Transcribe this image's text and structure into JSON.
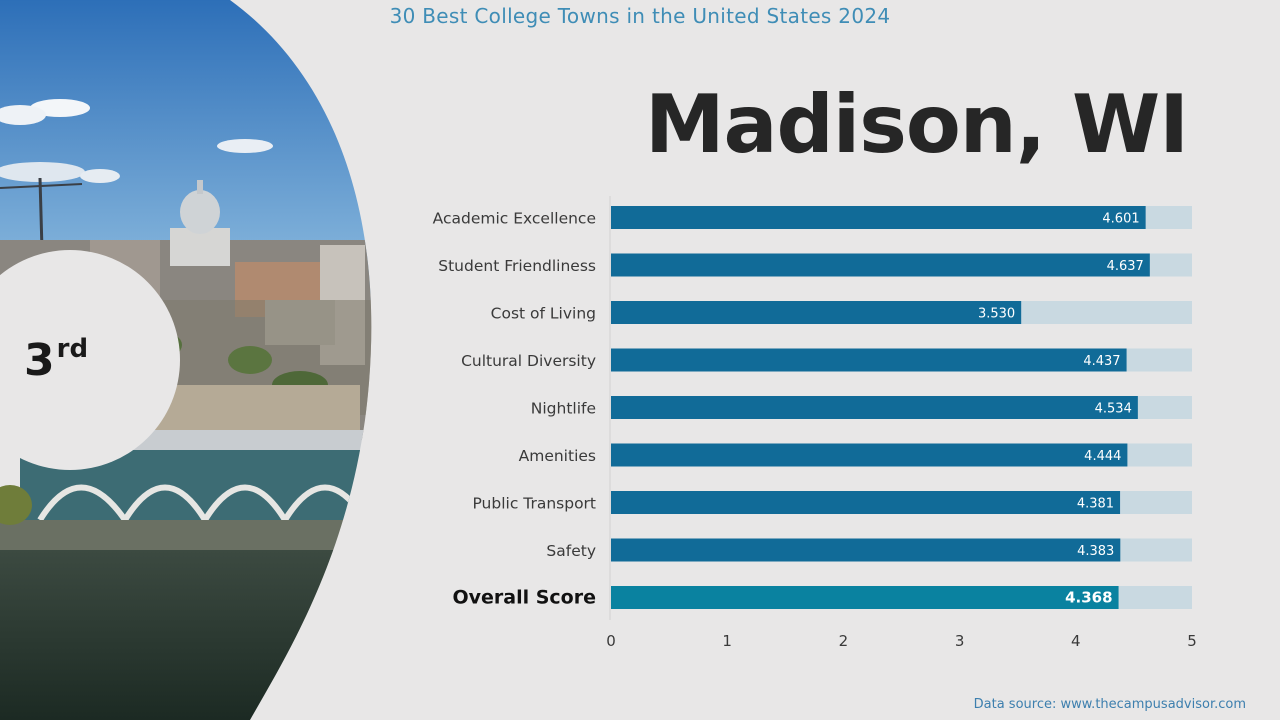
{
  "header": {
    "title": "30 Best College Towns in the United States 2024"
  },
  "city": {
    "name": "Madison, WI",
    "rank_number": "3",
    "rank_suffix": "rd"
  },
  "source": "Data source: www.thecampusadvisor.com",
  "colors": {
    "bar": "#116b98",
    "overall_bar": "#0a82a0",
    "track": "#c9d9e1",
    "title": "#3f8db6",
    "background": "#e8e7e7"
  },
  "chart_data": {
    "type": "bar",
    "orientation": "horizontal",
    "categories": [
      "Academic Excellence",
      "Student Friendliness",
      "Cost of Living",
      "Cultural Diversity",
      "Nightlife",
      "Amenities",
      "Public Transport",
      "Safety",
      "Overall Score"
    ],
    "values": [
      4.601,
      4.637,
      3.53,
      4.437,
      4.534,
      4.444,
      4.381,
      4.383,
      4.368
    ],
    "labels": [
      "4.601",
      "4.637",
      "3.530",
      "4.437",
      "4.534",
      "4.444",
      "4.381",
      "4.383",
      "4.368"
    ],
    "highlight_category": "Overall Score",
    "xlim": [
      0,
      5
    ],
    "xticks": [
      0,
      1,
      2,
      3,
      4,
      5
    ],
    "title": "",
    "xlabel": "",
    "ylabel": "",
    "grid": false,
    "legend": "none"
  }
}
